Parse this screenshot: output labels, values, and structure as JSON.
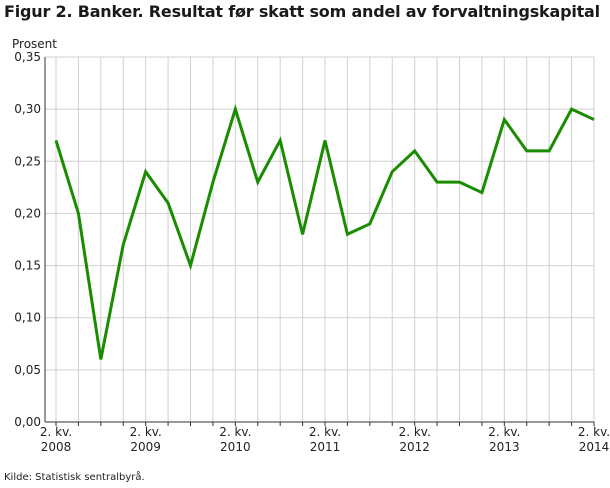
{
  "title": "Figur 2. Banker. Resultat før skatt som andel av forvaltningskapital",
  "source": "Kilde: Statistisk sentralbyrå.",
  "chart_data": {
    "type": "line",
    "ylabel": "Prosent",
    "ylim": [
      0,
      0.35
    ],
    "yticks": [
      "0,00",
      "0,05",
      "0,10",
      "0,15",
      "0,20",
      "0,25",
      "0,30",
      "0,35"
    ],
    "x": [
      "2008K2",
      "2008K3",
      "2008K4",
      "2009K1",
      "2009K2",
      "2009K3",
      "2009K4",
      "2010K1",
      "2010K2",
      "2010K3",
      "2010K4",
      "2011K1",
      "2011K2",
      "2011K3",
      "2011K4",
      "2012K1",
      "2012K2",
      "2012K3",
      "2012K4",
      "2013K1",
      "2013K2",
      "2013K3",
      "2013K4",
      "2014K1",
      "2014K2"
    ],
    "xtick_labels": [
      {
        "index": 0,
        "line1": "2. kv.",
        "line2": "2008"
      },
      {
        "index": 4,
        "line1": "2. kv.",
        "line2": "2009"
      },
      {
        "index": 8,
        "line1": "2. kv.",
        "line2": "2010"
      },
      {
        "index": 12,
        "line1": "2. kv.",
        "line2": "2011"
      },
      {
        "index": 16,
        "line1": "2. kv.",
        "line2": "2012"
      },
      {
        "index": 20,
        "line1": "2. kv.",
        "line2": "2013"
      },
      {
        "index": 24,
        "line1": "2. kv.",
        "line2": "2014"
      }
    ],
    "series": [
      {
        "values": [
          0.27,
          0.2,
          0.06,
          0.17,
          0.24,
          0.21,
          0.15,
          0.23,
          0.3,
          0.23,
          0.27,
          0.18,
          0.27,
          0.18,
          0.19,
          0.24,
          0.26,
          0.23,
          0.23,
          0.22,
          0.29,
          0.26,
          0.26,
          0.3,
          0.29
        ],
        "color": "#1a8c00"
      }
    ],
    "grid": true
  }
}
